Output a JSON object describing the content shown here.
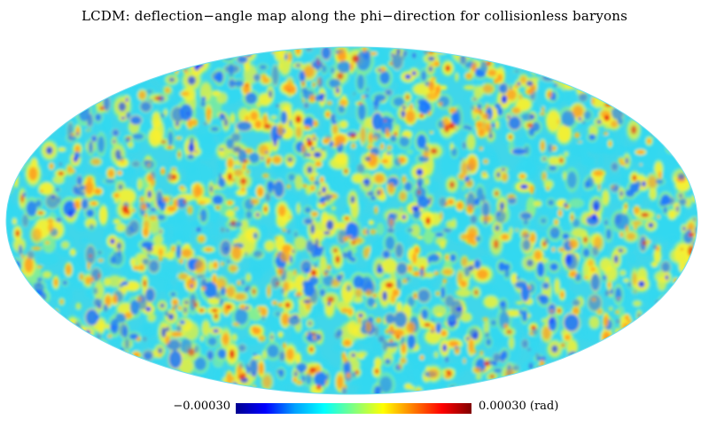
{
  "title": "LCDM: deflection−angle map along the phi−direction for collisionless baryons",
  "colorbar": {
    "min_label": "−0.00030",
    "max_label": "0.00030 (rad)",
    "range": [
      -0.0003,
      0.0003
    ],
    "colors": [
      "#00008f",
      "#0000ff",
      "#00a0ff",
      "#00ffff",
      "#80ff80",
      "#ffff00",
      "#ff8000",
      "#ff0000",
      "#800000"
    ]
  },
  "map": {
    "projection": "mollweide",
    "background_field_color": "#3fd6ea",
    "blob_colors": {
      "deep_blue": "#1a3cff",
      "blue": "#1c78ff",
      "cyan": "#33d8f0",
      "green": "#8bf08c",
      "yellow": "#f8f030",
      "orange": "#ff9c20",
      "red": "#e81c10"
    }
  }
}
